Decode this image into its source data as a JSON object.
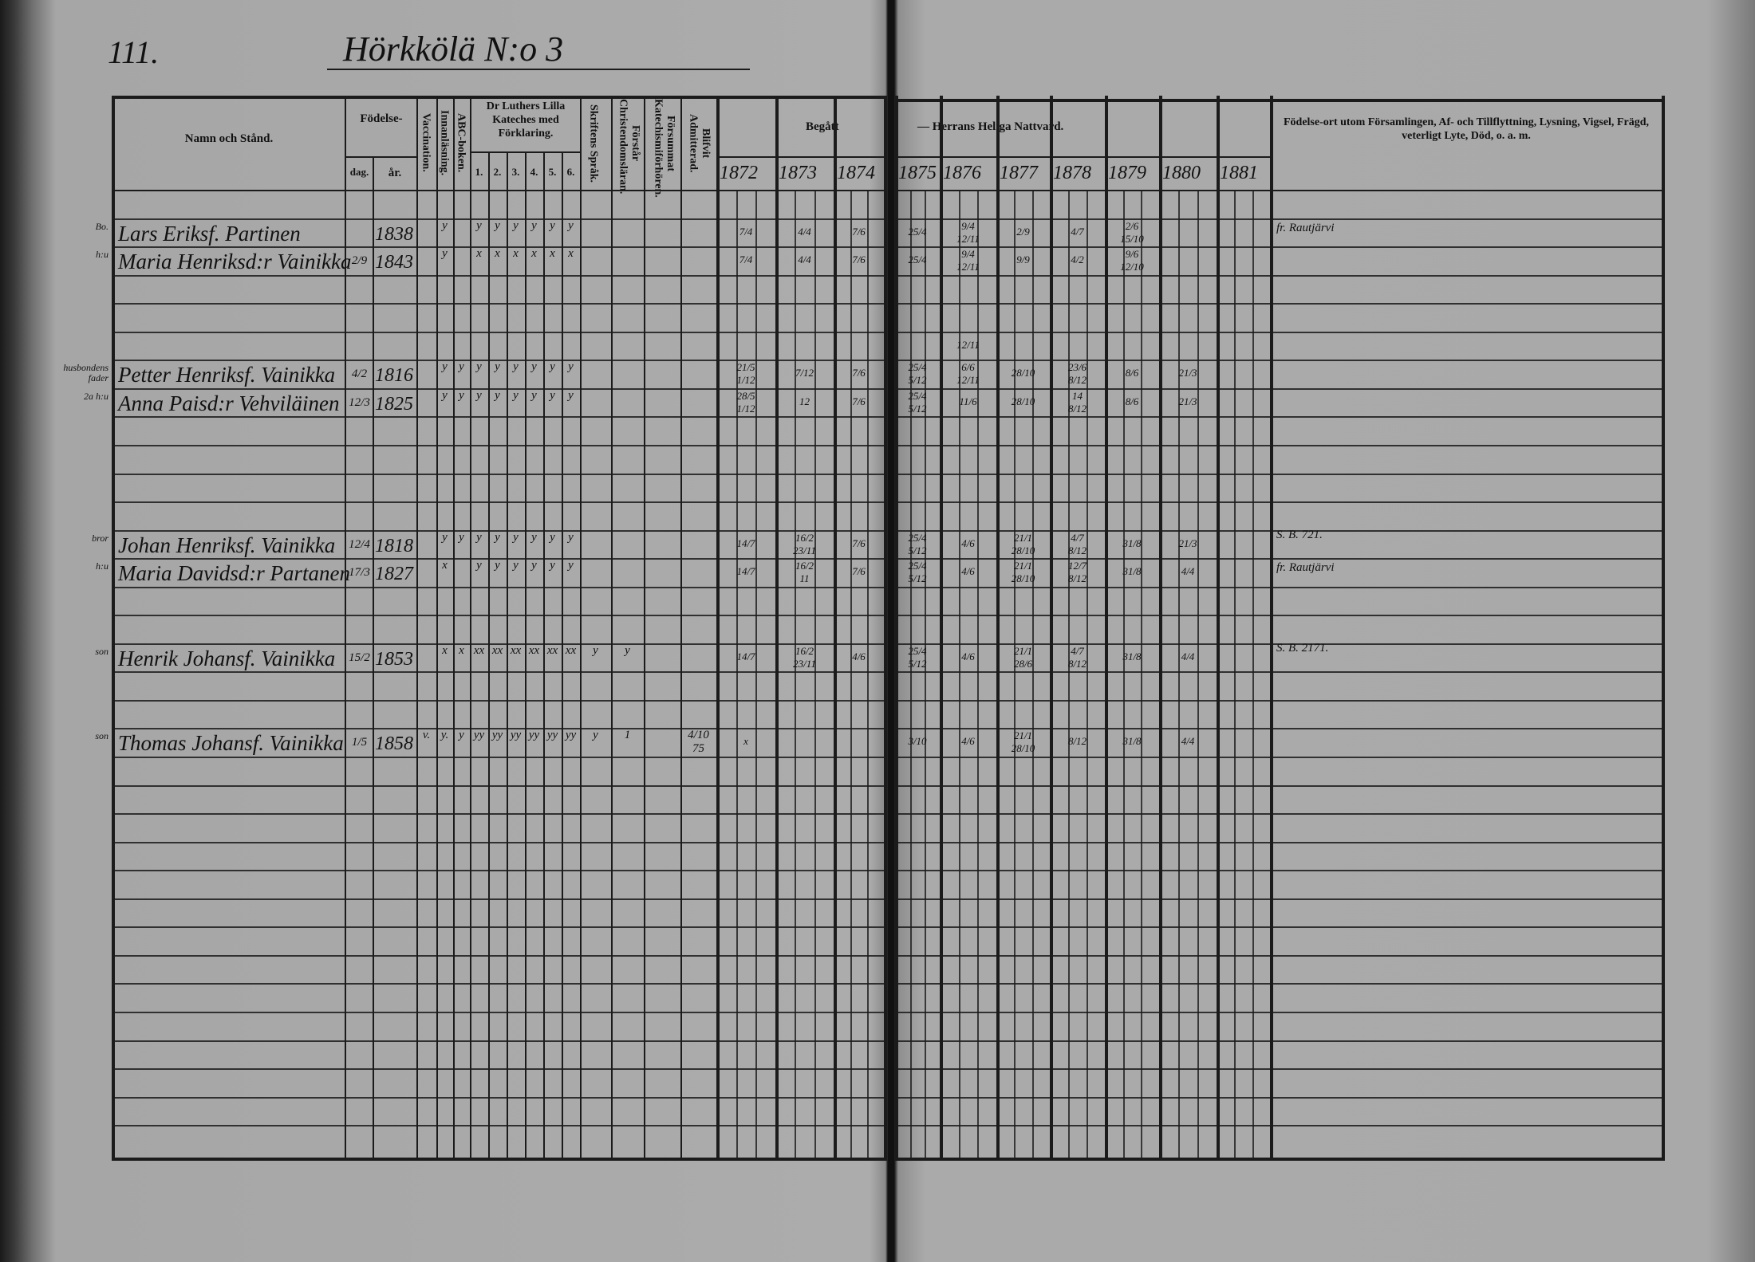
{
  "page_number": "111.",
  "farm_title": "Hörkkölä N:o 3",
  "headers": {
    "name": "Namn och Stånd.",
    "birth": "Födelse-",
    "birth_day": "dag.",
    "birth_year": "år.",
    "vaccination": "Vaccination.",
    "reading": "Innanläsning.",
    "abc": "ABC-boken.",
    "catechism": "Dr Luthers Lilla Kateches med Förklaring.",
    "catechism_parts": [
      "1.",
      "2.",
      "3.",
      "4.",
      "5.",
      "6."
    ],
    "scripture": "Skriftens Språk.",
    "understands": "Förstår Christendomsläran.",
    "missed": "Försummat Katechismiförhören.",
    "admitted": "Blifvit Admitterad.",
    "communion_left": "Begått",
    "communion_right": "— Herrans Heliga Nattvard.",
    "years": [
      "1872",
      "1873",
      "1874",
      "1875",
      "1876",
      "1877",
      "1878",
      "1879",
      "1880",
      "1881"
    ],
    "remarks": "Födelse-ort utom Församlingen, Af- och Tillflyttning, Lysning, Vigsel, Frägd, veterligt Lyte, Död, o. a. m."
  },
  "entries": [
    {
      "prefix": "Bo.",
      "name": "Lars Eriksf. Partinen",
      "day": "",
      "year": "1838",
      "marks": [
        "",
        "y",
        "",
        "y",
        "y",
        "y",
        "y",
        "y",
        "y",
        "",
        "",
        "",
        ""
      ],
      "communion": {
        "1872": [
          "7/4"
        ],
        "1873": [
          "4/4"
        ],
        "1874": [
          "7/6"
        ],
        "1875": [
          "25/4"
        ],
        "1876": [
          "9/4",
          "12/11"
        ],
        "1877": [
          "2/9"
        ],
        "1878": [
          "4/7"
        ],
        "1879": [
          "2/6",
          "15/10"
        ]
      },
      "remark": "fr. Rautjärvi"
    },
    {
      "prefix": "h:u",
      "name": "Maria Henriksd:r Vainikka",
      "day": "2/9",
      "year": "1843",
      "marks": [
        "",
        "y",
        "",
        "x",
        "x",
        "x",
        "x",
        "x",
        "x",
        "",
        "",
        "",
        ""
      ],
      "communion": {
        "1872": [
          "7/4"
        ],
        "1873": [
          "4/4"
        ],
        "1874": [
          "7/6"
        ],
        "1875": [
          "25/4"
        ],
        "1876": [
          "9/4",
          "12/11"
        ],
        "1877": [
          "9/9"
        ],
        "1878": [
          "4/2"
        ],
        "1879": [
          "9/6",
          "12/10"
        ]
      },
      "remark": ""
    },
    {
      "prefix": "husbondens fader",
      "name": "Petter Henriksf. Vainikka",
      "day": "4/2",
      "year": "1816",
      "marks": [
        "",
        "y",
        "y",
        "y",
        "y",
        "y",
        "y",
        "y",
        "y",
        "",
        "",
        "",
        ""
      ],
      "communion": {
        "1872": [
          "21/5",
          "1/12"
        ],
        "1873": [
          "7/12"
        ],
        "1874": [
          "7/6"
        ],
        "1875": [
          "25/4",
          "5/12"
        ],
        "1876": [
          "6/6",
          "12/11"
        ],
        "1877": [
          "28/10"
        ],
        "1878": [
          "23/6",
          "8/12"
        ],
        "1879": [
          "8/6"
        ],
        "1880": [
          "21/3"
        ]
      },
      "remark": ""
    },
    {
      "prefix": "2a h:u",
      "name": "Anna Paisd:r Vehviläinen",
      "day": "12/3",
      "year": "1825",
      "marks": [
        "",
        "y",
        "y",
        "y",
        "y",
        "y",
        "y",
        "y",
        "y",
        "",
        "",
        "",
        ""
      ],
      "communion": {
        "1872": [
          "28/5",
          "1/12"
        ],
        "1873": [
          "12"
        ],
        "1874": [
          "7/6"
        ],
        "1875": [
          "25/4",
          "5/12"
        ],
        "1876": [
          "11/6"
        ],
        "1877": [
          "28/10"
        ],
        "1878": [
          "14",
          "8/12"
        ],
        "1879": [
          "8/6"
        ],
        "1880": [
          "21/3"
        ]
      },
      "remark": ""
    },
    {
      "prefix": "bror",
      "name": "Johan Henriksf. Vainikka",
      "day": "12/4",
      "year": "1818",
      "marks": [
        "",
        "y",
        "y",
        "y",
        "y",
        "y",
        "y",
        "y",
        "y",
        "",
        "",
        "",
        ""
      ],
      "communion": {
        "1872": [
          "14/7"
        ],
        "1873": [
          "16/2",
          "23/11"
        ],
        "1874": [
          "7/6"
        ],
        "1875": [
          "25/4",
          "5/12"
        ],
        "1876": [
          "4/6"
        ],
        "1877": [
          "21/1",
          "28/10"
        ],
        "1878": [
          "4/7",
          "8/12"
        ],
        "1879": [
          "31/8"
        ],
        "1880": [
          "21/3"
        ]
      },
      "remark": "S. B. 721."
    },
    {
      "prefix": "h:u",
      "name": "Maria Davidsd:r Partanen",
      "day": "17/3",
      "year": "1827",
      "marks": [
        "",
        "x",
        "",
        "y",
        "y",
        "y",
        "y",
        "y",
        "y",
        "",
        "",
        "",
        ""
      ],
      "communion": {
        "1872": [
          "14/7"
        ],
        "1873": [
          "16/2",
          "11"
        ],
        "1874": [
          "7/6"
        ],
        "1875": [
          "25/4",
          "5/12"
        ],
        "1876": [
          "4/6"
        ],
        "1877": [
          "21/1",
          "28/10"
        ],
        "1878": [
          "12/7",
          "8/12"
        ],
        "1879": [
          "31/8"
        ],
        "1880": [
          "4/4"
        ]
      },
      "remark": "fr. Rautjärvi"
    },
    {
      "prefix": "son",
      "name": "Henrik Johansf. Vainikka",
      "day": "15/2",
      "year": "1853",
      "marks": [
        "",
        "x",
        "x",
        "xx",
        "xx",
        "xx",
        "xx",
        "xx",
        "xx",
        "y",
        "y",
        "",
        ""
      ],
      "communion": {
        "1872": [
          "14/7"
        ],
        "1873": [
          "16/2",
          "23/11"
        ],
        "1874": [
          "4/6"
        ],
        "1875": [
          "25/4",
          "5/12"
        ],
        "1876": [
          "4/6"
        ],
        "1877": [
          "21/1",
          "28/6"
        ],
        "1878": [
          "4/7",
          "8/12"
        ],
        "1879": [
          "31/8"
        ],
        "1880": [
          "4/4"
        ]
      },
      "remark": "S. B. 2171."
    },
    {
      "prefix": "son",
      "name": "Thomas Johansf. Vainikka",
      "day": "1/5",
      "year": "1858",
      "marks": [
        "v.",
        "y.",
        "y",
        "yy",
        "yy",
        "yy",
        "yy",
        "yy",
        "yy",
        "y",
        "1",
        "",
        "4/10 75"
      ],
      "communion": {
        "1872": [
          "x"
        ],
        "1875": [
          "3/10"
        ],
        "1876": [
          "4/6"
        ],
        "1877": [
          "21/1",
          "28/10"
        ],
        "1878": [
          "8/12"
        ],
        "1879": [
          "31/8"
        ],
        "1880": [
          "4/4"
        ]
      },
      "remark": ""
    }
  ],
  "extra_notes": [
    {
      "year": "1876",
      "value": "12/11"
    }
  ],
  "colors": {
    "paper": "#a9a9a9",
    "ink": "#1b1b1b"
  }
}
